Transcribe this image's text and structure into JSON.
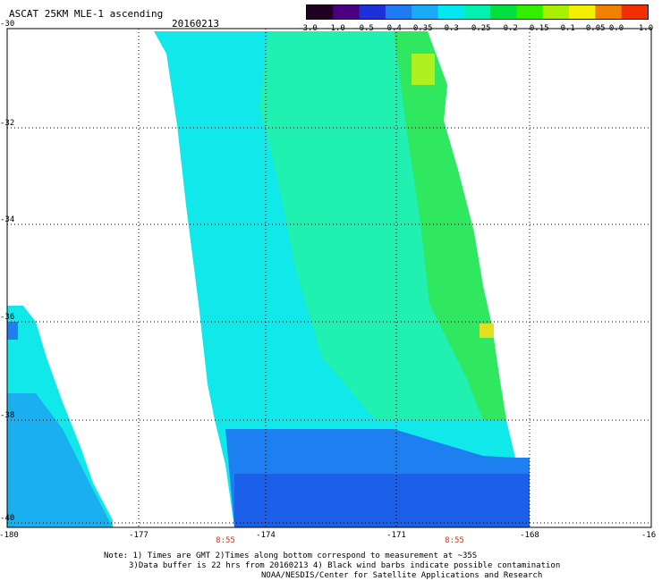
{
  "title": "ASCAT 25KM MLE-1 ascending",
  "date": "20160213",
  "colorbar": {
    "ticks": [
      "-3.0",
      "-1.0",
      "-0.5",
      "-0.4",
      "-0.35",
      "-0.3",
      "-0.25",
      "-0.2",
      "-0.15",
      "-0.1",
      "-0.05",
      "0.0",
      "1.0"
    ],
    "colors": [
      "#200020",
      "#4b0082",
      "#1e30d8",
      "#1e7cf0",
      "#1aaaf8",
      "#00e8f0",
      "#00f0b0",
      "#00e040",
      "#30f000",
      "#a8f000",
      "#f0f000",
      "#f08000",
      "#f03000"
    ]
  },
  "lat_labels": [
    "-30",
    "-32",
    "-34",
    "-36",
    "-38",
    "-40"
  ],
  "lon_labels": [
    "-180",
    "-177",
    "-174",
    "-171",
    "-168",
    "-16"
  ],
  "time_labels": [
    "8:55",
    "8:55"
  ],
  "notes": [
    "Note: 1) Times are GMT 2)Times along bottom correspond to measurement at ~35S",
    "3)Data buffer is 22 hrs from 20160213 4) Black wind barbs indicate possible contamination",
    "NOAA/NESDIS/Center for Satellite Applications and Research"
  ],
  "map_data": {
    "lat_range": [
      -40,
      -30
    ],
    "lon_range": [
      -180,
      -165
    ],
    "swaths": [
      {
        "name": "main",
        "dominant_values": [
          "-0.3",
          "-0.25",
          "-0.2",
          "-0.15"
        ],
        "south_edge_value": "-0.35"
      },
      {
        "name": "west",
        "dominant_values": [
          "-0.3",
          "-0.35"
        ]
      }
    ]
  }
}
